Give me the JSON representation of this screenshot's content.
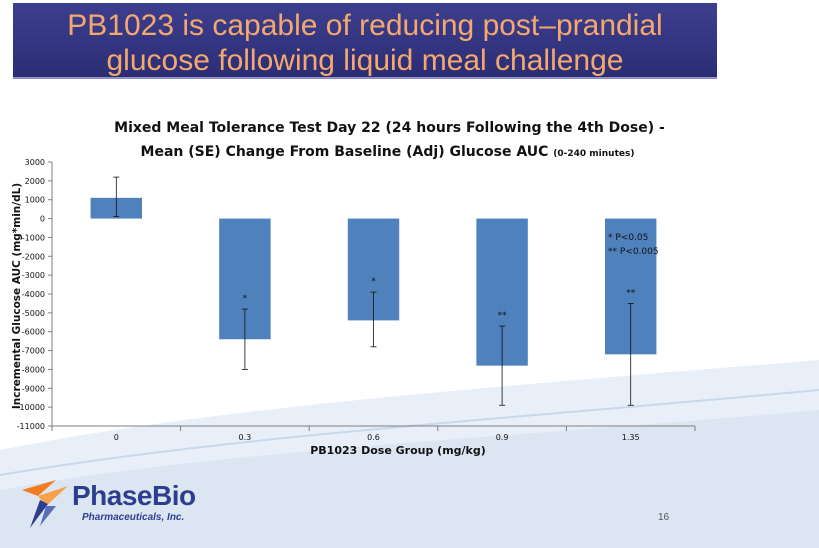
{
  "slide": {
    "title_line1": "PB1023 is capable of reducing post–prandial",
    "title_line2": "glucose following liquid meal challenge",
    "page_number": "16",
    "colors": {
      "banner": "#2f3180",
      "title_text": "#f5a86e",
      "bar": "#4f81bd"
    }
  },
  "logo": {
    "name": "PhaseBio",
    "subtitle": "Pharmaceuticals, Inc."
  },
  "chart_data": {
    "type": "bar",
    "title_line1": "Mixed Meal Tolerance Test Day 22 (24 hours Following the 4th Dose) -",
    "title_line2": "Mean (SE) Change From Baseline (Adj) Glucose AUC",
    "title_note": "(0-240 minutes)",
    "xlabel": "PB1023 Dose Group  (mg/kg)",
    "ylabel": "Incremental Glucose AUC (mg*min/dL)",
    "categories": [
      "0",
      "0.3",
      "0.6",
      "0.9",
      "1.35"
    ],
    "values": [
      1100,
      -6400,
      -5400,
      -7800,
      -7200
    ],
    "error_upper": [
      2200,
      -4800,
      -3900,
      -5700,
      -4500
    ],
    "error_lower": [
      100,
      -8000,
      -6800,
      -9900,
      -9900
    ],
    "significance": [
      "",
      "*",
      "*",
      "**",
      "**"
    ],
    "legend_notes": [
      "* P<0.05",
      "** P<0.005"
    ],
    "ylim": [
      -11000,
      3000
    ],
    "yticks": [
      3000,
      2000,
      1000,
      0,
      -1000,
      -2000,
      -3000,
      -4000,
      -5000,
      -6000,
      -7000,
      -8000,
      -9000,
      -10000,
      -11000
    ],
    "grid": false
  }
}
